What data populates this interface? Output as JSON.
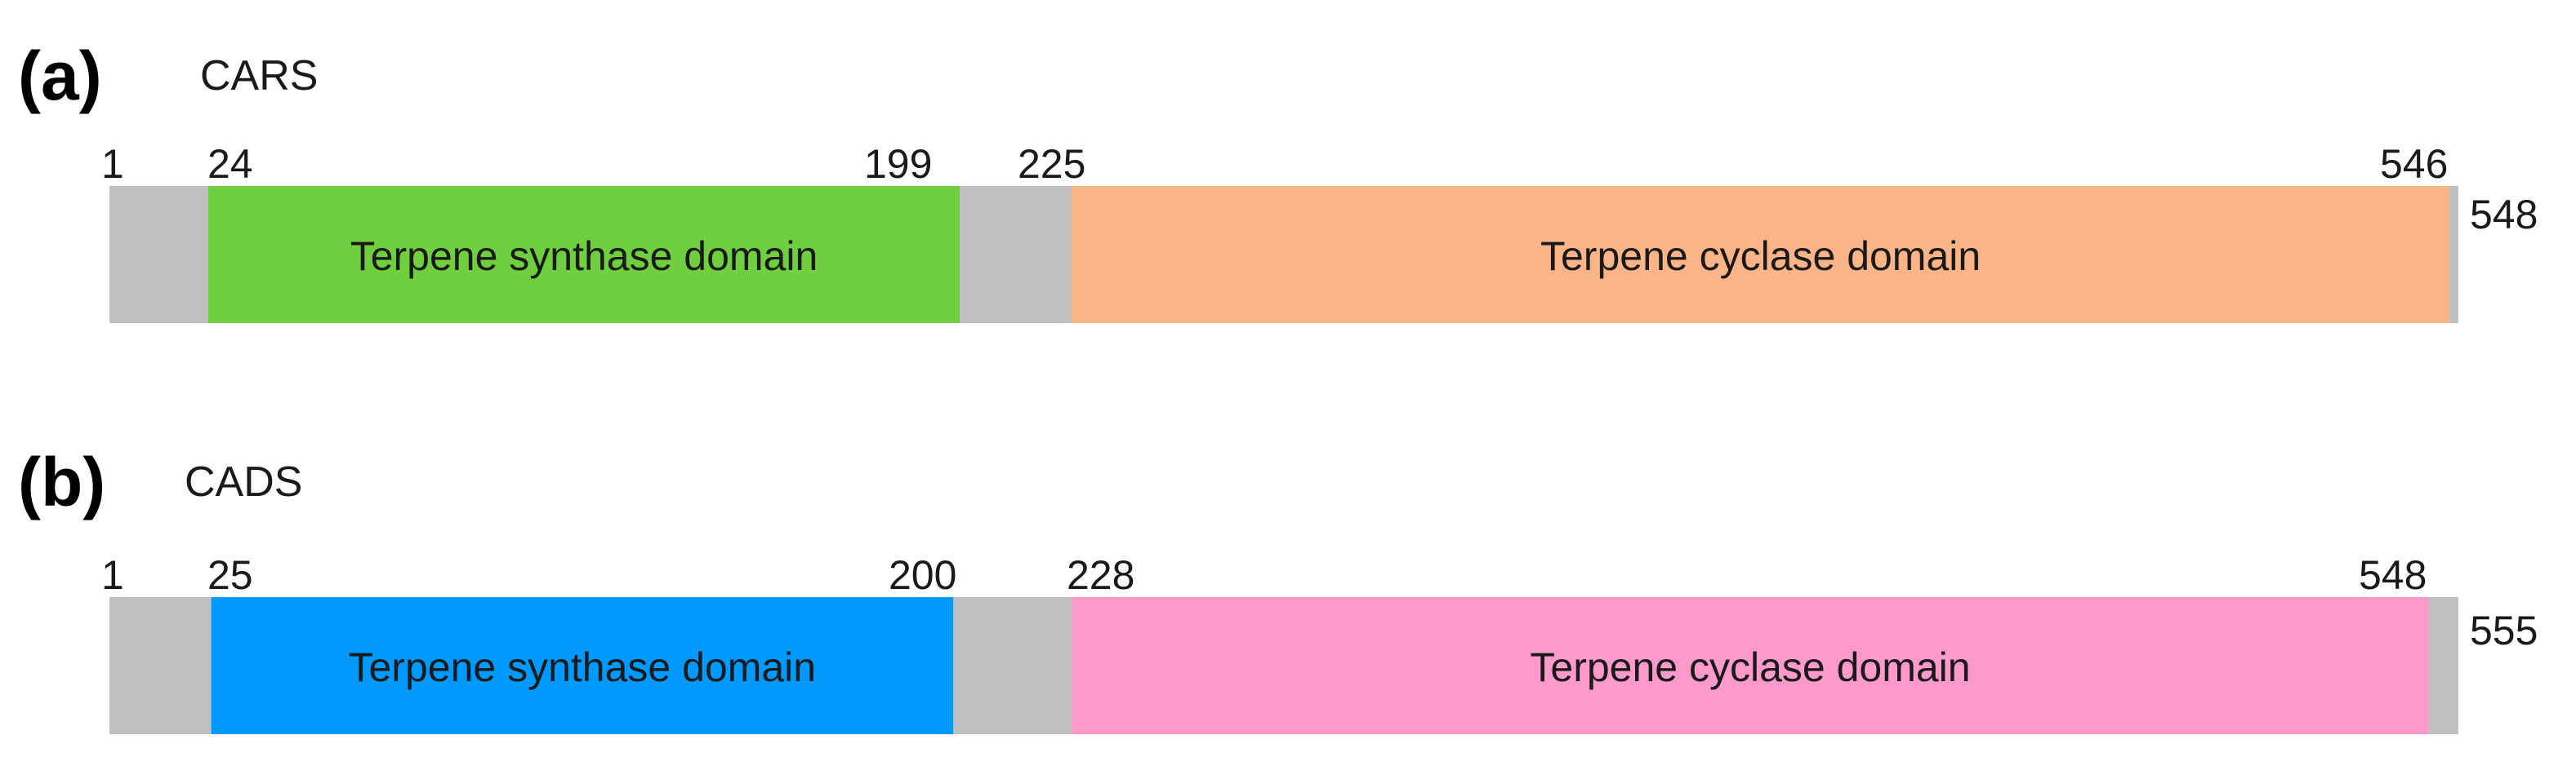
{
  "colors": {
    "backbone": "#c0c0c0",
    "text": "#1a1a1a"
  },
  "panels": [
    {
      "letter": "(a)",
      "protein": "CARS",
      "length": 548,
      "start_label": "1",
      "end_label": "548",
      "domains": [
        {
          "name": "Terpene synthase domain",
          "start": 24,
          "end": 199,
          "color": "#6fcf3f",
          "start_label": "24",
          "end_label": "199"
        },
        {
          "name": "Terpene cyclase domain",
          "start": 225,
          "end": 546,
          "color": "#fbb487",
          "start_label": "225",
          "end_label": "546"
        }
      ]
    },
    {
      "letter": "(b)",
      "protein": "CADS",
      "length": 555,
      "start_label": "1",
      "end_label": "555",
      "domains": [
        {
          "name": "Terpene synthase domain",
          "start": 25,
          "end": 200,
          "color": "#0099ff",
          "start_label": "25",
          "end_label": "200"
        },
        {
          "name": "Terpene cyclase domain",
          "start": 228,
          "end": 548,
          "color": "#fd99cb",
          "start_label": "228",
          "end_label": "548"
        }
      ]
    }
  ]
}
